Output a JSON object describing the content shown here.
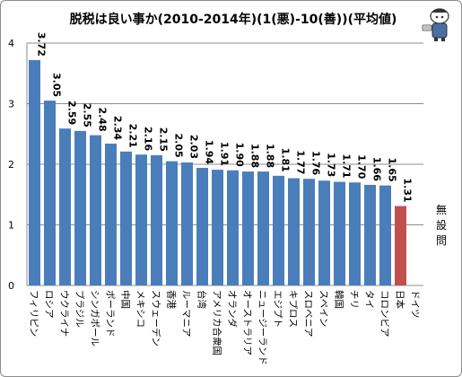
{
  "title": "脱税は良い事か(2010-2014年)(1(悪)-10(善))(平均値)",
  "note_text": "無設問",
  "chart_data": {
    "type": "bar",
    "title": "脱税は良い事か(2010-2014年)(1(悪)-10(善))(平均値)",
    "xlabel": "",
    "ylabel": "",
    "ylim": [
      0,
      4
    ],
    "yticks": [
      "0",
      "1",
      "2",
      "3",
      "4"
    ],
    "grid": true,
    "categories": [
      "フィリピン",
      "ロシア",
      "ウクライナ",
      "ブラジル",
      "シンガポール",
      "ポーランド",
      "中国",
      "メキシコ",
      "スウェーデン",
      "香港",
      "ルーマニア",
      "台湾",
      "アメリカ合衆国",
      "オランダ",
      "オーストラリア",
      "ニュージーランド",
      "エジプト",
      "キプロス",
      "スロベニア",
      "スペイン",
      "韓国",
      "チリ",
      "タイ",
      "コロンビア",
      "日本",
      "ドイツ"
    ],
    "values": [
      3.72,
      3.05,
      2.59,
      2.55,
      2.48,
      2.34,
      2.21,
      2.16,
      2.15,
      2.05,
      2.03,
      1.94,
      1.91,
      1.9,
      1.88,
      1.88,
      1.81,
      1.77,
      1.76,
      1.73,
      1.71,
      1.7,
      1.66,
      1.65,
      1.31,
      null
    ],
    "labels": [
      "3.72",
      "3.05",
      "2.59",
      "2.55",
      "2.48",
      "2.34",
      "2.21",
      "2.16",
      "2.15",
      "2.05",
      "2.03",
      "1.94",
      "1.91",
      "1.90",
      "1.88",
      "1.88",
      "1.81",
      "1.77",
      "1.76",
      "1.73",
      "1.71",
      "1.70",
      "1.66",
      "1.65",
      "1.31",
      ""
    ],
    "bar_color": "#4a7ebb",
    "highlight_color": "#c0504d",
    "highlight_category": "日本"
  }
}
